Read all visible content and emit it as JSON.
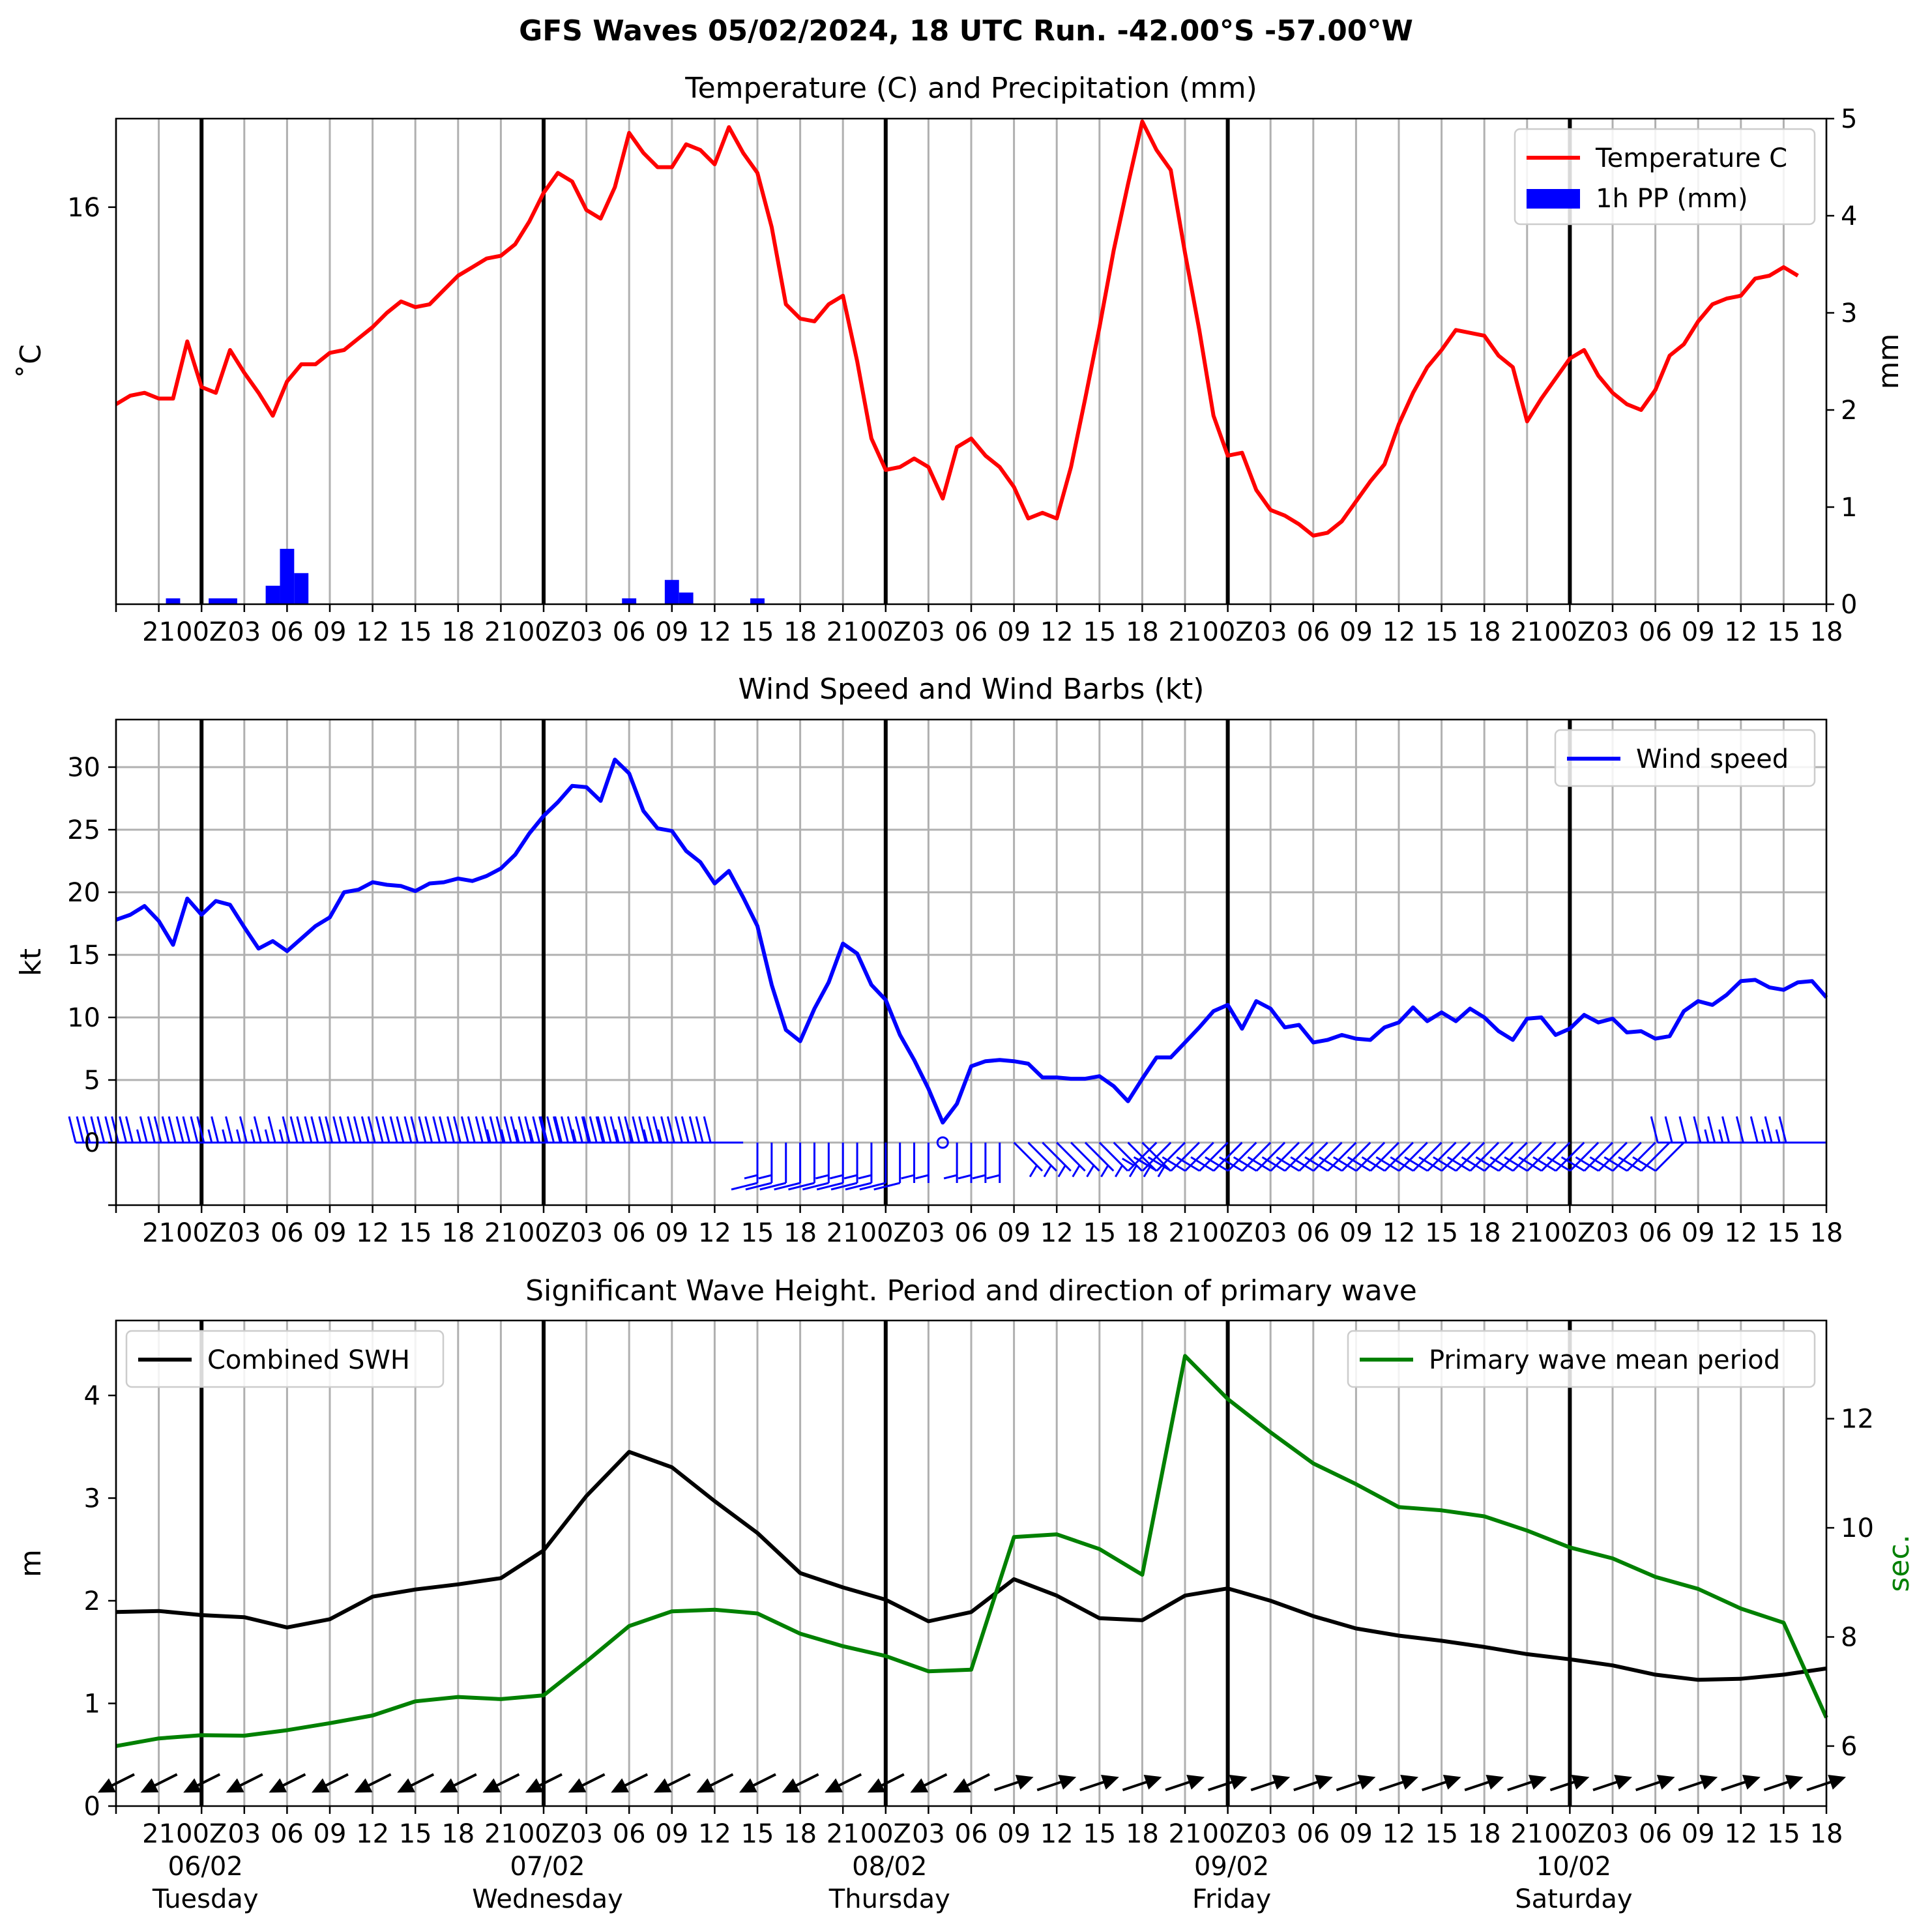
{
  "suptitle": "GFS Waves 05/02/2024, 18 UTC Run. -42.00°S -57.00°W",
  "colors": {
    "temperature": "#ff0000",
    "precip": "#0000ff",
    "wind": "#0000ff",
    "swh": "#000000",
    "period": "#008000",
    "grid": "#b0b0b0",
    "day_line": "#000000"
  },
  "time_axis": {
    "start": "05/02 18Z",
    "step_hours": 3,
    "tick_labels": [
      "",
      "21",
      "00Z",
      "03",
      "06",
      "09",
      "12",
      "15",
      "18",
      "21",
      "00Z",
      "03",
      "06",
      "09",
      "12",
      "15",
      "18",
      "21",
      "00Z",
      "03",
      "06",
      "09",
      "12",
      "15",
      "18",
      "21",
      "00Z",
      "03",
      "06",
      "09",
      "12",
      "15",
      "18",
      "21",
      "00Z",
      "03",
      "06",
      "09",
      "12",
      "15",
      "18"
    ],
    "day_boundaries": [
      {
        "label_date": "06/02",
        "label_day": "Tuesday"
      },
      {
        "label_date": "07/02",
        "label_day": "Wednesday"
      },
      {
        "label_date": "08/02",
        "label_day": "Thursday"
      },
      {
        "label_date": "09/02",
        "label_day": "Friday"
      },
      {
        "label_date": "10/02",
        "label_day": "Saturday"
      }
    ]
  },
  "chart_data": [
    {
      "type": "line",
      "title": "Temperature (C) and Precipitation (mm)",
      "ylabel": "$^\\circ$C",
      "ylabel_display": "˚C",
      "y2label": "mm",
      "yticks": [
        "16"
      ],
      "y2ticks": [
        "0",
        "1",
        "2",
        "3",
        "4",
        "5"
      ],
      "ylim": [
        9.05,
        17.55
      ],
      "y2lim": [
        0,
        5
      ],
      "grid": "vertical",
      "legend_position": "top-right",
      "legend": [
        "Temperature C",
        "1h PP (mm)"
      ],
      "series": [
        {
          "name": "Temperature C",
          "hourly_from": "05/02 18Z",
          "values": [
            12.55,
            12.7,
            12.75,
            12.65,
            12.65,
            13.65,
            12.85,
            12.75,
            13.5,
            13.1,
            12.75,
            12.35,
            12.95,
            13.25,
            13.25,
            13.45,
            13.5,
            13.7,
            13.9,
            14.15,
            14.35,
            14.25,
            14.3,
            14.55,
            14.8,
            14.95,
            15.1,
            15.15,
            15.35,
            15.75,
            16.25,
            16.6,
            16.45,
            15.95,
            15.8,
            16.35,
            17.3,
            16.95,
            16.7,
            16.7,
            17.1,
            17.0,
            16.75,
            17.4,
            16.95,
            16.6,
            15.65,
            14.3,
            14.05,
            14.0,
            14.3,
            14.45,
            13.3,
            11.95,
            11.4,
            11.45,
            11.6,
            11.45,
            10.9,
            11.8,
            11.95,
            11.65,
            11.45,
            11.1,
            10.55,
            10.65,
            10.55,
            11.45,
            12.65,
            13.9,
            15.25,
            16.4,
            17.5,
            17.0,
            16.65,
            15.2,
            13.85,
            12.35,
            11.65,
            11.7,
            11.05,
            10.7,
            10.6,
            10.45,
            10.25,
            10.3,
            10.5,
            10.85,
            11.2,
            11.5,
            12.2,
            12.75,
            13.2,
            13.5,
            13.85,
            13.8,
            13.75,
            13.4,
            13.2,
            12.25,
            12.65,
            13.0,
            13.35,
            13.5,
            13.05,
            12.75,
            12.55,
            12.45,
            12.8,
            13.4,
            13.6,
            14.0,
            14.3,
            14.4,
            14.45,
            14.75,
            14.8,
            14.95,
            14.8
          ]
        },
        {
          "name": "1h PP (mm)",
          "type": "bar",
          "values": {
            "05/02 22Z": 0.06,
            "06/02 01Z": 0.06,
            "06/02 02Z": 0.06,
            "06/02 05Z": 0.19,
            "06/02 06Z": 0.57,
            "06/02 07Z": 0.32,
            "07/02 06Z": 0.06,
            "07/02 09Z": 0.25,
            "07/02 10Z": 0.12,
            "07/02 15Z": 0.06
          }
        }
      ]
    },
    {
      "type": "line",
      "title": "Wind Speed and Wind Barbs (kt)",
      "ylabel": "kt",
      "yticks": [
        "0",
        "5",
        "10",
        "15",
        "20",
        "25",
        "30"
      ],
      "ylim": [
        -5,
        33.8
      ],
      "grid": "both",
      "legend_position": "top-right",
      "legend": [
        "Wind speed"
      ],
      "series": [
        {
          "name": "Wind speed",
          "hourly_from": "05/02 18Z",
          "values": [
            17.8,
            18.2,
            18.9,
            17.7,
            15.8,
            19.5,
            18.2,
            19.3,
            19.0,
            17.2,
            15.5,
            16.1,
            15.3,
            16.3,
            17.3,
            18.0,
            20.0,
            20.2,
            20.8,
            20.6,
            20.5,
            20.1,
            20.7,
            20.8,
            21.1,
            20.9,
            21.3,
            21.9,
            23.0,
            24.7,
            26.1,
            27.2,
            28.5,
            28.4,
            27.3,
            30.6,
            29.5,
            26.5,
            25.1,
            24.9,
            23.3,
            22.4,
            20.7,
            21.7,
            19.6,
            17.3,
            12.6,
            9.0,
            8.1,
            10.7,
            12.8,
            15.9,
            15.1,
            12.6,
            11.4,
            8.6,
            6.6,
            4.3,
            1.6,
            3.1,
            6.1,
            6.5,
            6.6,
            6.5,
            6.3,
            5.2,
            5.2,
            5.1,
            5.1,
            5.3,
            4.5,
            3.3,
            5.1,
            6.8,
            6.8,
            8.0,
            9.2,
            10.5,
            11.0,
            9.1,
            11.3,
            10.7,
            9.2,
            9.4,
            8.0,
            8.2,
            8.6,
            8.3,
            8.2,
            9.2,
            9.6,
            10.8,
            9.7,
            10.4,
            9.7,
            10.7,
            10.0,
            8.9,
            8.2,
            9.9,
            10.0,
            8.6,
            9.1,
            10.2,
            9.6,
            9.9,
            8.8,
            8.9,
            8.3,
            8.5,
            10.5,
            11.3,
            11.0,
            11.8,
            12.9,
            13.0,
            12.4,
            12.2,
            12.8,
            12.9,
            11.6
          ]
        },
        {
          "name": "Wind barbs",
          "type": "barbs",
          "hourly_from": "05/02 18Z",
          "direction_groups": [
            {
              "from": "05/02 18Z",
              "to": "07/02 14Z",
              "direction": "W"
            },
            {
              "from": "07/02 15Z",
              "to": "08/02 08Z",
              "direction": "S"
            },
            {
              "from": "08/02 09Z",
              "to": "08/02 18Z",
              "direction": "SE"
            },
            {
              "from": "08/02 19Z",
              "to": "10/02 08Z",
              "direction": "SW"
            },
            {
              "from": "10/02 09Z",
              "to": "10/02 18Z",
              "direction": "W"
            }
          ]
        }
      ]
    },
    {
      "type": "line",
      "title": "Significant Wave Height. Period and direction of primary wave",
      "ylabel": "m",
      "y2label": "sec.",
      "yticks": [
        "0",
        "1",
        "2",
        "3",
        "4"
      ],
      "y2ticks": [
        "6",
        "8",
        "10",
        "12"
      ],
      "ylim": [
        0,
        4.73
      ],
      "y2lim": [
        4.9,
        13.8
      ],
      "grid": "vertical",
      "legend_positions": {
        "Combined SWH": "top-left",
        "Primary wave mean period": "top-right"
      },
      "legend": [
        "Combined SWH",
        "Primary wave mean period"
      ],
      "series": [
        {
          "name": "Combined SWH",
          "step_hours": 3,
          "from": "05/02 18Z",
          "values": [
            1.89,
            1.9,
            1.86,
            1.84,
            1.74,
            1.82,
            2.04,
            2.11,
            2.16,
            2.22,
            2.49,
            3.02,
            3.45,
            3.3,
            2.97,
            2.66,
            2.27,
            2.13,
            2.01,
            1.8,
            1.89,
            2.21,
            2.05,
            1.83,
            1.81,
            2.05,
            2.12,
            2.0,
            1.85,
            1.73,
            1.66,
            1.61,
            1.55,
            1.48,
            1.43,
            1.37,
            1.28,
            1.23,
            1.24,
            1.28,
            1.34
          ]
        },
        {
          "name": "Primary wave mean period",
          "axis": "right",
          "step_hours": 3,
          "from": "05/02 18Z",
          "values": [
            6.0,
            6.14,
            6.2,
            6.19,
            6.29,
            6.42,
            6.56,
            6.82,
            6.9,
            6.86,
            6.93,
            7.55,
            8.2,
            8.47,
            8.5,
            8.43,
            8.06,
            7.83,
            7.65,
            7.37,
            7.4,
            9.83,
            9.88,
            9.61,
            9.14,
            13.15,
            12.36,
            11.75,
            11.18,
            10.8,
            10.38,
            10.32,
            10.21,
            9.95,
            9.64,
            9.44,
            9.1,
            8.88,
            8.52,
            8.26,
            6.52
          ]
        },
        {
          "name": "Primary wave direction",
          "type": "arrows",
          "step_hours": 3,
          "from": "05/02 18Z",
          "direction_groups": [
            {
              "from": "05/02 18Z",
              "to": "08/02 06Z",
              "heading": "SW"
            },
            {
              "from": "08/02 09Z",
              "to": "10/02 18Z",
              "heading": "ENE"
            }
          ]
        }
      ]
    }
  ]
}
